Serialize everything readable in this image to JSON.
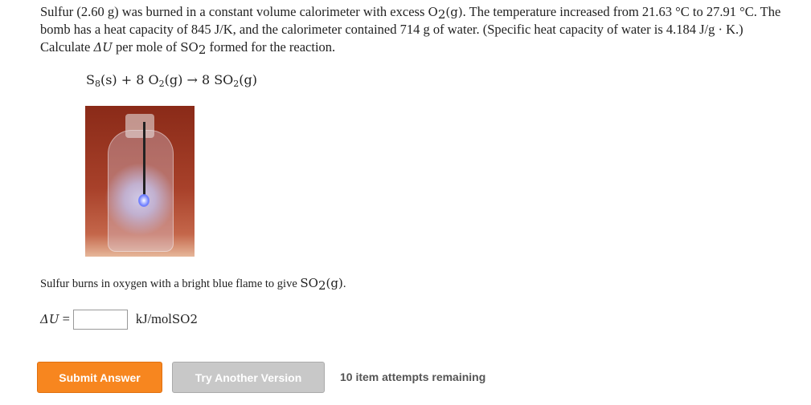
{
  "question": {
    "intro": [
      "Sulfur (2.60 g) was burned in a constant volume calorimeter with excess ",
      "O",
      "2",
      "(g)",
      ". The temperature increased from 21.63 °C to 27.91 °C. The bomb has a heat capacity of 845 J/K, and the calorimeter contained 714 g of water. (Specific heat capacity of water is 4.184 J/g · K.) Calculate ",
      "ΔU",
      " per mole of ",
      "SO",
      "2",
      " formed for the reaction."
    ],
    "equation": [
      "S",
      "8",
      "(s) + 8 ",
      "O",
      "2",
      "(g) → 8 ",
      "SO",
      "2",
      "(g)"
    ],
    "caption": [
      "Sulfur burns in oxygen with a bright blue flame to give ",
      "SO",
      "2",
      "(g)",
      "."
    ]
  },
  "answer": {
    "label": [
      "ΔU",
      "="
    ],
    "unit": [
      "kJ/mol ",
      "SO",
      "2"
    ]
  },
  "buttons": {
    "submit": "Submit Answer",
    "retry": "Try Another Version"
  },
  "attempts": "10 item attempts remaining"
}
